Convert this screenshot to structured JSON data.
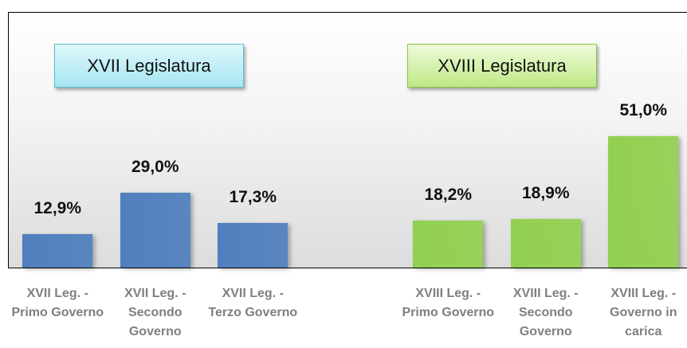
{
  "chart_data": {
    "type": "bar",
    "annotations": [
      "XVII Legislatura",
      "XVIII Legislatura"
    ],
    "categories": [
      "XVII Leg. - Primo Governo",
      "XVII Leg. - Secondo Governo",
      "XVII Leg. - Terzo Governo",
      null,
      "XVIII Leg. - Primo Governo",
      "XVIII Leg. - Secondo Governo",
      "XVIII Leg. - Governo in carica"
    ],
    "values": [
      12.9,
      29.0,
      17.3,
      null,
      18.2,
      18.9,
      51.0
    ],
    "value_labels": [
      "12,9%",
      "29,0%",
      "17,3%",
      null,
      "18,2%",
      "18,9%",
      "51,0%"
    ],
    "colors": [
      "#4f7fbd",
      "#4f7fbd",
      "#4f7fbd",
      null,
      "#92d050",
      "#92d050",
      "#92d050"
    ]
  }
}
